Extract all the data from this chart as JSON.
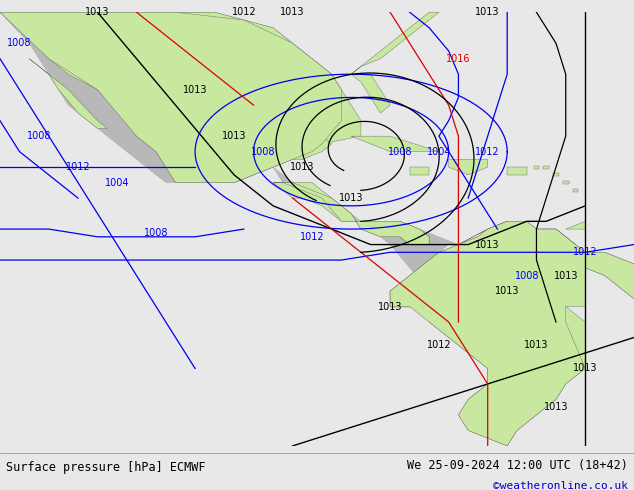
{
  "fig_width": 6.34,
  "fig_height": 4.9,
  "dpi": 100,
  "footer_left": "Surface pressure [hPa] ECMWF",
  "footer_right": "We 25-09-2024 12:00 UTC (18+42)",
  "footer_url": "©weatheronline.co.uk",
  "footer_color": "#000000",
  "footer_url_color": "#0000cc",
  "footer_fontsize": 8.5,
  "land_color": "#c8e8a0",
  "ocean_color": "#d8d8d8",
  "gray_color": "#b8b8b8",
  "isobar_lw": 0.9,
  "label_fontsize": 7,
  "map_lon_min": -120,
  "map_lon_max": -55,
  "map_lat_min": -18,
  "map_lat_max": 38,
  "footer_bar_color": "#888888",
  "black": "#000000",
  "blue": "#0000ee",
  "red": "#dd0000"
}
